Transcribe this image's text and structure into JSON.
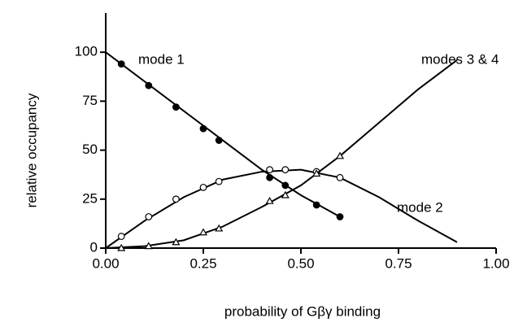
{
  "chart_data": {
    "type": "line",
    "x_label": "probability of Gβγ  binding",
    "y_label": "relative occupancy",
    "x": [
      0.04,
      0.11,
      0.18,
      0.25,
      0.29,
      0.42,
      0.46,
      0.54,
      0.6
    ],
    "series": [
      {
        "name": "mode 1",
        "color": "#000000",
        "marker": "filled-circle",
        "values": [
          94,
          83,
          72,
          61,
          55,
          36,
          32,
          22,
          16
        ],
        "fit_x": [
          0,
          0.1,
          0.2,
          0.3,
          0.4,
          0.5,
          0.6
        ],
        "fit_values": [
          100,
          85,
          70,
          55,
          40,
          27,
          16
        ]
      },
      {
        "name": "mode 2",
        "color": "#000000",
        "marker": "open-circle",
        "values": [
          6,
          16,
          25,
          31,
          34,
          40,
          40,
          39,
          36
        ],
        "fit_x": [
          0,
          0.1,
          0.2,
          0.3,
          0.4,
          0.5,
          0.6,
          0.7,
          0.8,
          0.9
        ],
        "fit_values": [
          0,
          14,
          26,
          35,
          39,
          40,
          36,
          26,
          14,
          3
        ]
      },
      {
        "name": "modes 3 & 4",
        "color": "#000000",
        "marker": "triangle",
        "values": [
          0,
          1,
          3,
          8,
          10,
          24,
          27,
          38,
          47
        ],
        "fit_x": [
          0,
          0.1,
          0.2,
          0.3,
          0.4,
          0.5,
          0.6,
          0.7,
          0.8,
          0.9
        ],
        "fit_values": [
          0,
          1,
          4,
          11,
          21,
          32,
          47,
          64,
          81,
          96
        ]
      }
    ],
    "xlim": [
      0,
      1
    ],
    "ylim": [
      0,
      120
    ],
    "xticks": [
      {
        "value": 0,
        "label": "0.00"
      },
      {
        "value": 0.25,
        "label": "0.25"
      },
      {
        "value": 0.5,
        "label": "0.50"
      },
      {
        "value": 0.75,
        "label": "0.75"
      },
      {
        "value": 1,
        "label": "1.00"
      }
    ],
    "yticks": [
      0,
      25,
      50,
      75,
      100
    ],
    "grid": false
  }
}
